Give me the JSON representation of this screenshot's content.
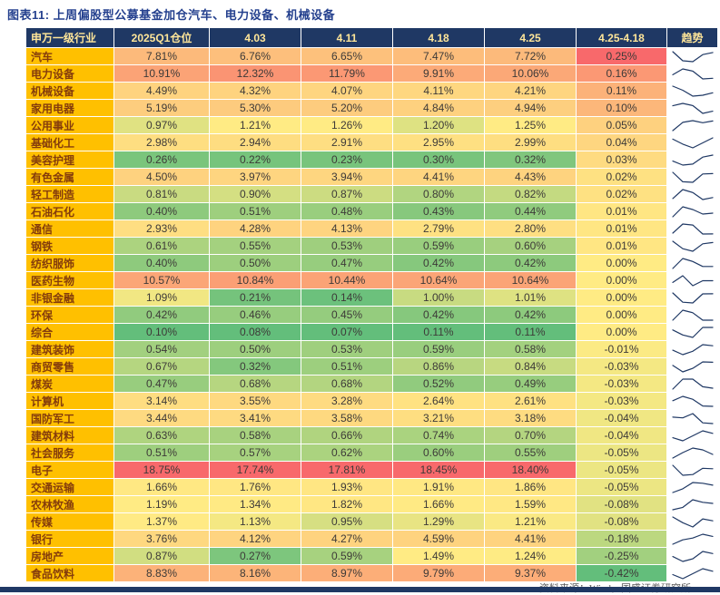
{
  "title": "图表11: 上周偏股型公募基金加仓汽车、电力设备、机械设备",
  "source": "资料来源：Wind，国盛证券研究所",
  "colors": {
    "title_color": "#24408E",
    "header_bg": "#1F3864",
    "header_text": "#FFE699",
    "industry_bg": "#FFC000",
    "industry_text": "#843C0C",
    "scale_green": "#63BE7B",
    "scale_yellow": "#FFEB84",
    "scale_red": "#F8696B",
    "sparkline": "#1F3864"
  },
  "chart_data": {
    "type": "heatmap",
    "title": "上周偏股型公募基金加仓汽车、电力设备、机械设备",
    "unit": "%",
    "columns": [
      "申万一级行业",
      "2025Q1仓位",
      "4.03",
      "4.11",
      "4.18",
      "4.25",
      "4.25-4.18",
      "趋势"
    ],
    "rows": [
      {
        "industry": "汽车",
        "values": [
          7.81,
          6.76,
          6.65,
          7.47,
          7.72
        ],
        "diff": 0.25
      },
      {
        "industry": "电力设备",
        "values": [
          10.91,
          12.32,
          11.79,
          9.91,
          10.06
        ],
        "diff": 0.16
      },
      {
        "industry": "机械设备",
        "values": [
          4.49,
          4.32,
          4.07,
          4.11,
          4.21
        ],
        "diff": 0.11
      },
      {
        "industry": "家用电器",
        "values": [
          5.19,
          5.3,
          5.2,
          4.84,
          4.94
        ],
        "diff": 0.1
      },
      {
        "industry": "公用事业",
        "values": [
          0.97,
          1.21,
          1.26,
          1.2,
          1.25
        ],
        "diff": 0.05
      },
      {
        "industry": "基础化工",
        "values": [
          2.98,
          2.94,
          2.91,
          2.95,
          2.99
        ],
        "diff": 0.04
      },
      {
        "industry": "美容护理",
        "values": [
          0.26,
          0.22,
          0.23,
          0.3,
          0.32
        ],
        "diff": 0.03
      },
      {
        "industry": "有色金属",
        "values": [
          4.5,
          3.97,
          3.94,
          4.41,
          4.43
        ],
        "diff": 0.02
      },
      {
        "industry": "轻工制造",
        "values": [
          0.81,
          0.9,
          0.87,
          0.8,
          0.82
        ],
        "diff": 0.02
      },
      {
        "industry": "石油石化",
        "values": [
          0.4,
          0.51,
          0.48,
          0.43,
          0.44
        ],
        "diff": 0.01
      },
      {
        "industry": "通信",
        "values": [
          2.93,
          4.28,
          4.13,
          2.79,
          2.8
        ],
        "diff": 0.01
      },
      {
        "industry": "钢铁",
        "values": [
          0.61,
          0.55,
          0.53,
          0.59,
          0.6
        ],
        "diff": 0.01
      },
      {
        "industry": "纺织服饰",
        "values": [
          0.4,
          0.5,
          0.47,
          0.42,
          0.42
        ],
        "diff": 0.0
      },
      {
        "industry": "医药生物",
        "values": [
          10.57,
          10.84,
          10.44,
          10.64,
          10.64
        ],
        "diff": 0.0
      },
      {
        "industry": "非银金融",
        "values": [
          1.09,
          0.21,
          0.14,
          1.0,
          1.01
        ],
        "diff": 0.0
      },
      {
        "industry": "环保",
        "values": [
          0.42,
          0.46,
          0.45,
          0.42,
          0.42
        ],
        "diff": 0.0
      },
      {
        "industry": "综合",
        "values": [
          0.1,
          0.08,
          0.07,
          0.11,
          0.11
        ],
        "diff": 0.0
      },
      {
        "industry": "建筑装饰",
        "values": [
          0.54,
          0.5,
          0.53,
          0.59,
          0.58
        ],
        "diff": -0.01
      },
      {
        "industry": "商贸零售",
        "values": [
          0.67,
          0.32,
          0.51,
          0.86,
          0.84
        ],
        "diff": -0.03
      },
      {
        "industry": "煤炭",
        "values": [
          0.47,
          0.68,
          0.68,
          0.52,
          0.49
        ],
        "diff": -0.03
      },
      {
        "industry": "计算机",
        "values": [
          3.14,
          3.55,
          3.28,
          2.64,
          2.61
        ],
        "diff": -0.03
      },
      {
        "industry": "国防军工",
        "values": [
          3.44,
          3.41,
          3.58,
          3.21,
          3.18
        ],
        "diff": -0.04
      },
      {
        "industry": "建筑材料",
        "values": [
          0.63,
          0.58,
          0.66,
          0.74,
          0.7
        ],
        "diff": -0.04
      },
      {
        "industry": "社会服务",
        "values": [
          0.51,
          0.57,
          0.62,
          0.6,
          0.55
        ],
        "diff": -0.05
      },
      {
        "industry": "电子",
        "values": [
          18.75,
          17.74,
          17.81,
          18.45,
          18.4
        ],
        "diff": -0.05
      },
      {
        "industry": "交通运输",
        "values": [
          1.66,
          1.76,
          1.93,
          1.91,
          1.86
        ],
        "diff": -0.05
      },
      {
        "industry": "农林牧渔",
        "values": [
          1.19,
          1.34,
          1.82,
          1.66,
          1.59
        ],
        "diff": -0.08
      },
      {
        "industry": "传媒",
        "values": [
          1.37,
          1.13,
          0.95,
          1.29,
          1.21
        ],
        "diff": -0.08
      },
      {
        "industry": "银行",
        "values": [
          3.76,
          4.12,
          4.27,
          4.59,
          4.41
        ],
        "diff": -0.18
      },
      {
        "industry": "房地产",
        "values": [
          0.87,
          0.27,
          0.59,
          1.49,
          1.24
        ],
        "diff": -0.25
      },
      {
        "industry": "食品饮料",
        "values": [
          8.83,
          8.16,
          8.97,
          9.79,
          9.37
        ],
        "diff": -0.42
      }
    ]
  }
}
